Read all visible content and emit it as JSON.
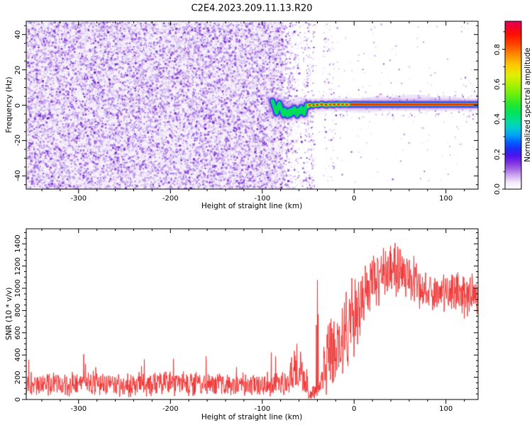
{
  "chart_data": [
    {
      "type": "heatmap",
      "title": "C2E4.2023.209.11.13.R20",
      "xlabel": "Height of straight line (km)",
      "ylabel": "Frequency (Hz)",
      "xlim": [
        -357,
        135
      ],
      "ylim": [
        -47.5,
        47.5
      ],
      "x_major_ticks": [
        -300,
        -200,
        -100,
        0,
        100
      ],
      "x_minor_step": 20,
      "y_major_ticks": [
        40,
        20,
        0,
        -20,
        -40
      ],
      "y_minor_step": 5,
      "grid": false,
      "colorbar": {
        "label": "Normalized spectral amplitude",
        "ticks": [
          0.0,
          0.2,
          0.4,
          0.6,
          0.8
        ],
        "vmin": 0,
        "vmax": 0.96,
        "minor_step": 0.1,
        "stops": [
          [
            0.0,
            "#ffffff"
          ],
          [
            0.04,
            "#f2e9fa"
          ],
          [
            0.08,
            "#cfa9ef"
          ],
          [
            0.12,
            "#a266e4"
          ],
          [
            0.16,
            "#7c2ee0"
          ],
          [
            0.2,
            "#4b14ee"
          ],
          [
            0.24,
            "#1f2df6"
          ],
          [
            0.28,
            "#0060ff"
          ],
          [
            0.32,
            "#00a0f8"
          ],
          [
            0.36,
            "#00c8d8"
          ],
          [
            0.4,
            "#00dca0"
          ],
          [
            0.45,
            "#00e262"
          ],
          [
            0.5,
            "#20e830"
          ],
          [
            0.56,
            "#66ee10"
          ],
          [
            0.62,
            "#aaf000"
          ],
          [
            0.68,
            "#e2ee00"
          ],
          [
            0.74,
            "#ffc800"
          ],
          [
            0.8,
            "#ff8c00"
          ],
          [
            0.86,
            "#ff4600"
          ],
          [
            0.92,
            "#fb1000"
          ],
          [
            0.97,
            "#ef0030"
          ],
          [
            1.0,
            "#e4005e"
          ]
        ]
      },
      "noise": {
        "description": "dense low-amplitude speckle noise filling heights below -77 km, fading out by -56 km; sparse speckle columns near -50 km and -28 km; faint speckle halo around the zero-frequency echo line at greater heights",
        "background": "#f7f2fc",
        "palette": [
          [
            "#e9def7",
            0.3
          ],
          [
            "#cdaaf0",
            0.26
          ],
          [
            "#b083e8",
            0.2
          ],
          [
            "#8a46dd",
            0.14
          ],
          [
            "#6e22cf",
            0.08
          ],
          [
            "#5a10b8",
            0.02
          ]
        ],
        "dense_from": -357,
        "dense_to": -77,
        "fade_to": -56,
        "dense_count": 15000,
        "fade_count": 900,
        "sparse_count": 240,
        "halo_count": 260,
        "columns": [
          [
            -56,
            -44,
            260
          ],
          [
            -34,
            -22,
            90
          ]
        ]
      },
      "echo": {
        "description": "meteor echo: wavy trace from -89 to -51 km oscillating 2 to -6 Hz, beaded red segments -51 to -5 km, then straight intense line at ~0 Hz out to 135 km",
        "wave_points": [
          [
            -89,
            2.5
          ],
          [
            -87.5,
            0.2
          ],
          [
            -86,
            -2
          ],
          [
            -84.5,
            -4.5
          ],
          [
            -83,
            -1.5
          ],
          [
            -81.5,
            1.2
          ],
          [
            -80,
            -1
          ],
          [
            -78.5,
            -3.5
          ],
          [
            -77,
            -5.5
          ],
          [
            -75.5,
            -2.5
          ],
          [
            -74,
            -4.8
          ],
          [
            -72.5,
            -6
          ],
          [
            -71,
            -3
          ],
          [
            -69.5,
            -5.5
          ],
          [
            -68,
            -2.5
          ],
          [
            -66.5,
            -4.5
          ],
          [
            -65,
            -1.5
          ],
          [
            -63.5,
            -3.8
          ],
          [
            -62,
            -5.8
          ],
          [
            -60.5,
            -2.5
          ],
          [
            -59,
            -4.2
          ],
          [
            -57.5,
            -1.2
          ],
          [
            -56,
            -3
          ],
          [
            -54.5,
            -5
          ],
          [
            -53,
            -1.8
          ],
          [
            -51.5,
            0.2
          ],
          [
            -50,
            -0.8
          ],
          [
            -48,
            0.4
          ],
          [
            -45,
            -0.3
          ],
          [
            -42,
            0.5
          ],
          [
            -39,
            0
          ],
          [
            -35,
            0.6
          ],
          [
            -31,
            0.1
          ],
          [
            -27,
            0.5
          ],
          [
            -23,
            0.2
          ],
          [
            -19,
            0.6
          ],
          [
            -15,
            0.3
          ],
          [
            -10,
            0.5
          ],
          [
            -5,
            0.3
          ],
          [
            0,
            0.5
          ],
          [
            20,
            0.4
          ],
          [
            135,
            0.4
          ]
        ],
        "layers": [
          {
            "color": "#b48ce9",
            "w": 18,
            "a": 0.25,
            "from": -89
          },
          {
            "color": "#9b55e6",
            "w": 12,
            "a": 0.6,
            "from": -89
          },
          {
            "color": "#5a18e0",
            "w": 8.6,
            "a": 0.9,
            "from": -89
          },
          {
            "color": "#2230f2",
            "w": 7.2,
            "a": 1,
            "from": -89
          },
          {
            "color": "#00b8f0",
            "w": 5.6,
            "a": 1,
            "from": -89
          },
          {
            "color": "#00dc55",
            "w": 4.4,
            "a": 1,
            "from": -89
          },
          {
            "color": "#f0e800",
            "w": 3.2,
            "a": 1,
            "from": -51
          },
          {
            "color": "#ff8c00",
            "w": 2.6,
            "a": 1,
            "from": -5
          },
          {
            "color": "#fb1000",
            "w": 1.8,
            "a": 1,
            "from": -5
          }
        ],
        "beads": [
          -48.5,
          -44,
          -40,
          -35.5,
          -30.5,
          -26,
          -21.5,
          -17,
          -12.5,
          -8
        ],
        "fuzz": [
          [
            30,
            3.2,
            28,
            5,
            0.15
          ],
          [
            65,
            3.6,
            30,
            6,
            0.18
          ],
          [
            100,
            3.2,
            24,
            5,
            0.15
          ],
          [
            8,
            -2.8,
            30,
            4,
            0.1
          ],
          [
            -60,
            0,
            18,
            11,
            0.2
          ],
          [
            -76,
            -1,
            16,
            10,
            0.18
          ]
        ]
      },
      "seed": 1234567
    },
    {
      "type": "line",
      "xlabel": "Height of straight line (km)",
      "ylabel": "SNR (10 * v/v)",
      "xlim": [
        -357,
        135
      ],
      "ylim": [
        0,
        1535
      ],
      "x_major_ticks": [
        -300,
        -200,
        -100,
        0,
        100
      ],
      "x_minor_step": 20,
      "y_major_ticks": [
        0,
        200,
        400,
        600,
        800,
        1000,
        1200,
        1400
      ],
      "y_minor_step": 50,
      "grid": false,
      "line_color": "#ee2b2b",
      "description": "noisy SNR profile: baseline ~140 below -75 km, burst ~300 near -60 km, drop near zero -50 to -37 km with sparse tall spikes, rise from -30 km to broad plateau ~1150 (peaks ~1480) between +20 and +55 km, then ~950 band out to 135 km",
      "envelope": [
        [
          -357,
          140,
          125
        ],
        [
          -75,
          140,
          125
        ],
        [
          -66,
          250,
          250
        ],
        [
          -58,
          290,
          290
        ],
        [
          -52,
          150,
          150
        ],
        [
          -48,
          70,
          80
        ],
        [
          -42,
          70,
          95
        ],
        [
          -37,
          110,
          140
        ],
        [
          -32,
          260,
          320
        ],
        [
          -28,
          430,
          430
        ],
        [
          -24,
          380,
          380
        ],
        [
          -18,
          480,
          420
        ],
        [
          -12,
          560,
          430
        ],
        [
          -6,
          650,
          410
        ],
        [
          0,
          730,
          400
        ],
        [
          6,
          820,
          380
        ],
        [
          12,
          900,
          360
        ],
        [
          18,
          1000,
          340
        ],
        [
          24,
          1080,
          330
        ],
        [
          30,
          1130,
          320
        ],
        [
          36,
          1160,
          310
        ],
        [
          44,
          1160,
          300
        ],
        [
          52,
          1140,
          290
        ],
        [
          58,
          1120,
          275
        ],
        [
          64,
          1080,
          260
        ],
        [
          70,
          1030,
          250
        ],
        [
          76,
          975,
          235
        ],
        [
          85,
          945,
          220
        ],
        [
          95,
          950,
          220
        ],
        [
          105,
          958,
          225
        ],
        [
          115,
          950,
          228
        ],
        [
          125,
          945,
          230
        ],
        [
          135,
          930,
          230
        ]
      ],
      "spike_region": {
        "from": -50,
        "to": -26,
        "chance": 0.05,
        "base": 650,
        "extra": 430
      },
      "baseline_spikes": {
        "to": -75,
        "chance": 0.013,
        "base": 280,
        "extra": 150
      },
      "seed": 987654
    }
  ]
}
